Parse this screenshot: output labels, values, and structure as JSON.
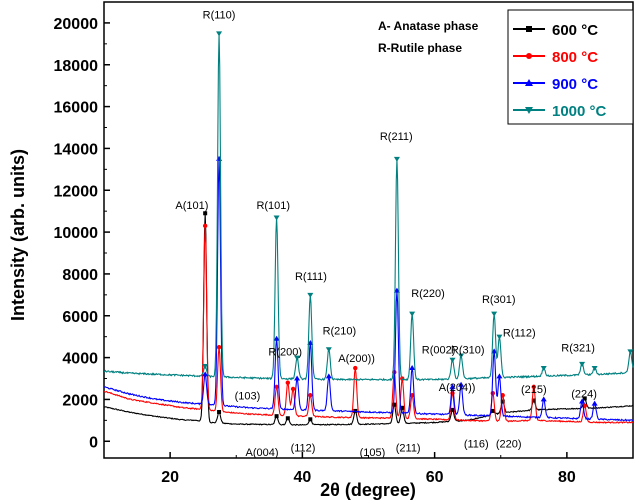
{
  "chart_data": {
    "type": "line",
    "title": "",
    "xlabel": "2θ (degree)",
    "ylabel": "Intensity (arb. units)",
    "xlim": [
      10,
      90
    ],
    "ylim": [
      -800,
      21000
    ],
    "xticks": [
      20,
      40,
      60,
      80
    ],
    "yticks": [
      0,
      2000,
      4000,
      6000,
      8000,
      10000,
      12000,
      14000,
      16000,
      18000,
      20000
    ],
    "grid": false,
    "legend_position": "top-right",
    "notes": [
      "A- Anatase phase",
      "R-Rutile phase"
    ],
    "series": [
      {
        "name": "600 °C",
        "color": "#000000",
        "baseline": [
          [
            10,
            1650
          ],
          [
            14,
            1380
          ],
          [
            18,
            1180
          ],
          [
            22,
            1020
          ],
          [
            24,
            1000
          ],
          [
            26,
            900
          ],
          [
            30,
            820
          ],
          [
            35,
            800
          ],
          [
            40,
            780
          ],
          [
            45,
            800
          ],
          [
            50,
            820
          ],
          [
            55,
            850
          ],
          [
            60,
            900
          ],
          [
            65,
            1000
          ],
          [
            70,
            1350
          ],
          [
            75,
            1500
          ],
          [
            80,
            1550
          ],
          [
            85,
            1600
          ],
          [
            90,
            1700
          ]
        ],
        "peaks": [
          [
            25.3,
            10900
          ],
          [
            27.4,
            1400
          ],
          [
            36.1,
            1200
          ],
          [
            37.8,
            1100
          ],
          [
            41.2,
            1050
          ],
          [
            48.0,
            1450
          ],
          [
            53.9,
            1750
          ],
          [
            55.1,
            1600
          ],
          [
            62.7,
            1500
          ],
          [
            68.8,
            1450
          ],
          [
            70.3,
            1900
          ],
          [
            75.0,
            1950
          ],
          [
            82.7,
            2050
          ]
        ]
      },
      {
        "name": "800 °C",
        "color": "#ff0000",
        "baseline": [
          [
            10,
            2400
          ],
          [
            14,
            2000
          ],
          [
            18,
            1800
          ],
          [
            22,
            1600
          ],
          [
            24,
            1550
          ],
          [
            28,
            1400
          ],
          [
            32,
            1300
          ],
          [
            36,
            1250
          ],
          [
            40,
            1200
          ],
          [
            45,
            1150
          ],
          [
            50,
            1120
          ],
          [
            55,
            1100
          ],
          [
            60,
            1050
          ],
          [
            65,
            1000
          ],
          [
            70,
            950
          ],
          [
            75,
            1000
          ],
          [
            80,
            950
          ],
          [
            85,
            900
          ],
          [
            90,
            900
          ]
        ],
        "peaks": [
          [
            25.3,
            10300
          ],
          [
            27.4,
            4500
          ],
          [
            36.1,
            2600
          ],
          [
            37.8,
            2800
          ],
          [
            38.6,
            2500
          ],
          [
            41.2,
            2200
          ],
          [
            48.0,
            3500
          ],
          [
            53.9,
            3300
          ],
          [
            55.1,
            3000
          ],
          [
            56.6,
            2200
          ],
          [
            62.7,
            2300
          ],
          [
            68.8,
            2300
          ],
          [
            70.3,
            2200
          ],
          [
            75.0,
            2600
          ],
          [
            82.7,
            1700
          ]
        ]
      },
      {
        "name": "900 °C",
        "color": "#0000ff",
        "baseline": [
          [
            10,
            2600
          ],
          [
            14,
            2250
          ],
          [
            18,
            2000
          ],
          [
            22,
            1850
          ],
          [
            24,
            1800
          ],
          [
            28,
            1700
          ],
          [
            32,
            1600
          ],
          [
            36,
            1550
          ],
          [
            40,
            1500
          ],
          [
            45,
            1450
          ],
          [
            50,
            1400
          ],
          [
            55,
            1350
          ],
          [
            60,
            1300
          ],
          [
            65,
            1250
          ],
          [
            70,
            1200
          ],
          [
            75,
            1150
          ],
          [
            80,
            1100
          ],
          [
            85,
            1050
          ],
          [
            90,
            1000
          ]
        ],
        "peaks": [
          [
            25.3,
            3200
          ],
          [
            27.4,
            13500
          ],
          [
            36.1,
            4900
          ],
          [
            39.2,
            3000
          ],
          [
            41.2,
            4700
          ],
          [
            44.0,
            3100
          ],
          [
            54.3,
            7200
          ],
          [
            56.6,
            3500
          ],
          [
            62.7,
            2600
          ],
          [
            64.0,
            2700
          ],
          [
            69.0,
            4300
          ],
          [
            69.8,
            3100
          ],
          [
            76.5,
            2000
          ],
          [
            82.3,
            1900
          ],
          [
            84.2,
            1800
          ]
        ]
      },
      {
        "name": "1000 °C",
        "color": "#008080",
        "baseline": [
          [
            10,
            3350
          ],
          [
            14,
            3250
          ],
          [
            18,
            3200
          ],
          [
            22,
            3150
          ],
          [
            26,
            3100
          ],
          [
            30,
            3050
          ],
          [
            35,
            3000
          ],
          [
            40,
            2980
          ],
          [
            45,
            2950
          ],
          [
            50,
            2950
          ],
          [
            55,
            2950
          ],
          [
            60,
            2950
          ],
          [
            65,
            3000
          ],
          [
            70,
            3050
          ],
          [
            75,
            3100
          ],
          [
            80,
            3150
          ],
          [
            85,
            3200
          ],
          [
            90,
            3300
          ]
        ],
        "peaks": [
          [
            25.3,
            3600
          ],
          [
            27.4,
            19500
          ],
          [
            36.1,
            10700
          ],
          [
            39.2,
            4000
          ],
          [
            41.2,
            7000
          ],
          [
            44.0,
            4400
          ],
          [
            54.3,
            13500
          ],
          [
            56.6,
            6100
          ],
          [
            62.7,
            3900
          ],
          [
            64.0,
            4100
          ],
          [
            69.0,
            6100
          ],
          [
            69.8,
            5000
          ],
          [
            76.5,
            3500
          ],
          [
            82.3,
            3700
          ],
          [
            84.2,
            3500
          ],
          [
            89.6,
            4300
          ]
        ]
      }
    ],
    "annotations": [
      {
        "text": "R(110)",
        "x": 27.4,
        "y": 20200
      },
      {
        "text": "A(101)",
        "x": 23.3,
        "y": 11100
      },
      {
        "text": "R(101)",
        "x": 35.6,
        "y": 11100
      },
      {
        "text": "R(111)",
        "x": 41.3,
        "y": 7700
      },
      {
        "text": "R(210)",
        "x": 45.6,
        "y": 5100
      },
      {
        "text": "R(200)",
        "x": 37.4,
        "y": 4100
      },
      {
        "text": "A(200))",
        "x": 48.2,
        "y": 3800
      },
      {
        "text": "R(211)",
        "x": 54.2,
        "y": 14400
      },
      {
        "text": "R(220)",
        "x": 59.0,
        "y": 6900
      },
      {
        "text": "R(002)",
        "x": 60.6,
        "y": 4200
      },
      {
        "text": "R(310)",
        "x": 65.0,
        "y": 4200
      },
      {
        "text": "R(301)",
        "x": 69.7,
        "y": 6600
      },
      {
        "text": "R(112)",
        "x": 72.8,
        "y": 5000
      },
      {
        "text": "R(321)",
        "x": 81.7,
        "y": 4300
      },
      {
        "text": "(103)",
        "x": 31.7,
        "y": 2000
      },
      {
        "text": "A(004)",
        "x": 33.9,
        "y": -700
      },
      {
        "text": "(112)",
        "x": 40.1,
        "y": -500
      },
      {
        "text": "(105)",
        "x": 50.6,
        "y": -700
      },
      {
        "text": "(211)",
        "x": 56.0,
        "y": -500
      },
      {
        "text": "A(204))",
        "x": 63.4,
        "y": 2400
      },
      {
        "text": "(116)",
        "x": 66.3,
        "y": -300
      },
      {
        "text": "(220)",
        "x": 71.2,
        "y": -300
      },
      {
        "text": "(215)",
        "x": 75.0,
        "y": 2300
      },
      {
        "text": "(224)",
        "x": 82.6,
        "y": 2100
      }
    ]
  }
}
